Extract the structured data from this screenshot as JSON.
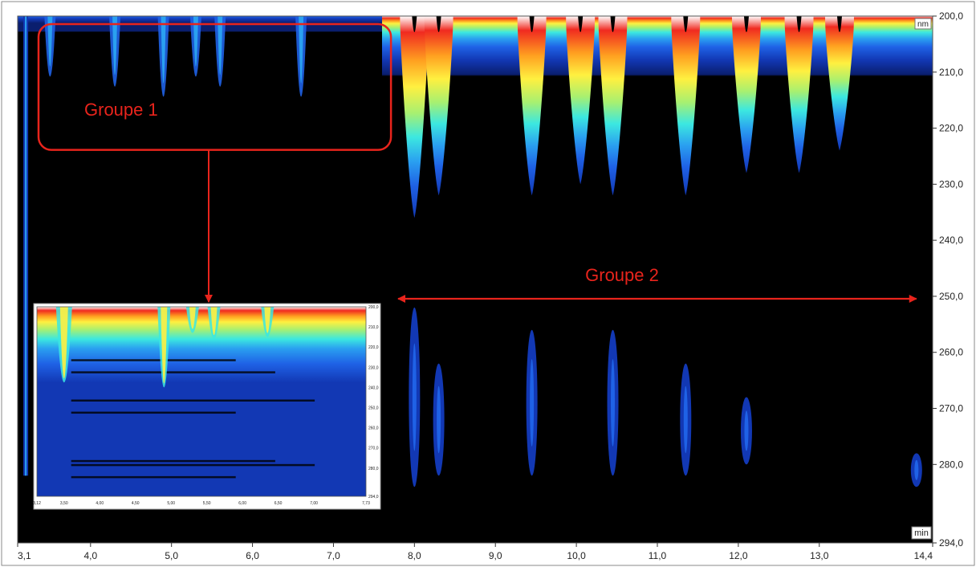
{
  "chart_data": {
    "type": "heatmap",
    "x_axis": {
      "range": [
        3.1,
        14.4
      ],
      "unit": "min",
      "tick_labels": [
        "3,1",
        "4,0",
        "5,0",
        "6,0",
        "7,0",
        "8,0",
        "9,0",
        "10,0",
        "11,0",
        "12,0",
        "13,0",
        "14,4"
      ],
      "ticks": [
        3.1,
        4,
        5,
        6,
        7,
        8,
        9,
        10,
        11,
        12,
        13,
        14.4
      ]
    },
    "y_axis": {
      "range": [
        200,
        294
      ],
      "unit": "nm",
      "inverted": true,
      "tick_labels": [
        "200,0",
        "210,0",
        "220,0",
        "230,0",
        "240,0",
        "250,0",
        "260,0",
        "270,0",
        "280,0",
        "294,0"
      ],
      "ticks": [
        200,
        210,
        220,
        230,
        240,
        250,
        260,
        270,
        280,
        294
      ]
    },
    "color_scale": [
      "#000000",
      "#0a1e6e",
      "#1238b4",
      "#1f62e6",
      "#2aa0f0",
      "#3ce8e0",
      "#a8f070",
      "#fff040",
      "#ffa020",
      "#f02a20",
      "#ffffff"
    ],
    "group1_peaks_min": [
      3.5,
      4.3,
      4.9,
      5.3,
      5.6,
      6.6
    ],
    "group2_peaks_min": [
      8.0,
      8.3,
      9.45,
      10.05,
      10.45,
      11.35,
      12.1,
      12.75,
      13.25
    ],
    "annotations": [
      {
        "label": "Groupe 1",
        "kind": "box",
        "x_range": [
          3.1,
          7.75
        ],
        "y_range": [
          200,
          217
        ]
      },
      {
        "label": "Groupe 2",
        "kind": "double-arrow",
        "x_range": [
          7.7,
          14.1
        ],
        "y": 251
      }
    ],
    "inset": {
      "description_axis": "zoom",
      "x_range": [
        3.12,
        7.73
      ],
      "y_range": [
        200,
        294
      ],
      "x_tick_labels": [
        "3,12",
        "3,50",
        "4,00",
        "4,50",
        "5,00",
        "5,50",
        "6,00",
        "6,50",
        "7,00",
        "7,73"
      ],
      "x_ticks": [
        3.12,
        3.5,
        4.0,
        4.5,
        5.0,
        5.5,
        6.0,
        6.5,
        7.0,
        7.73
      ],
      "y_tick_labels": [
        "200,0",
        "210,0",
        "220,0",
        "230,0",
        "240,0",
        "250,0",
        "260,0",
        "270,0",
        "280,0",
        "294,0"
      ],
      "y_ticks": [
        200,
        210,
        220,
        230,
        240,
        250,
        260,
        270,
        280,
        294
      ],
      "x_unit": "min",
      "y_unit": "nm",
      "peaks_min": [
        3.5,
        4.9,
        5.3,
        5.6,
        6.35
      ]
    },
    "colors": {
      "annotation": "#e8241c",
      "background": "#000000"
    }
  }
}
